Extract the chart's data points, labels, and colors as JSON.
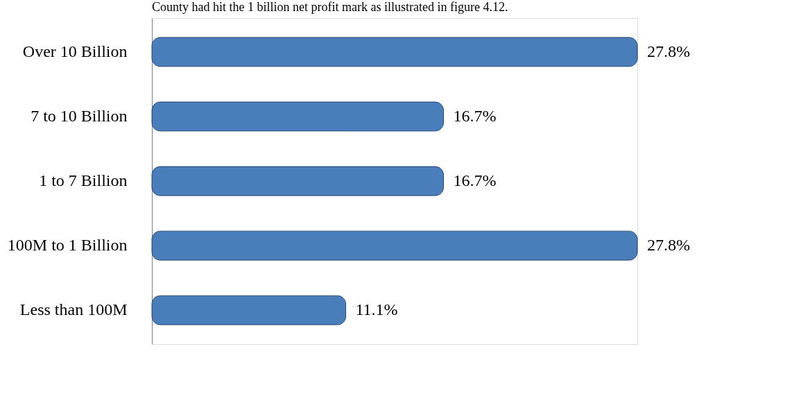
{
  "chart_data": {
    "type": "bar",
    "orientation": "horizontal",
    "annotations": [
      "County had hit the 1 billion net profit mark as illustrated in figure 4.12."
    ],
    "categories": [
      "Over 10 Billion",
      "7 to 10 Billion",
      "1 to 7 Billion",
      "100M to 1 Billion",
      "Less than 100M"
    ],
    "values": [
      27.8,
      16.7,
      16.7,
      27.8,
      11.1
    ],
    "value_labels": [
      "27.8%",
      "16.7%",
      "16.7%",
      "27.8%",
      "11.1%"
    ],
    "color": "#4a7ebb"
  }
}
